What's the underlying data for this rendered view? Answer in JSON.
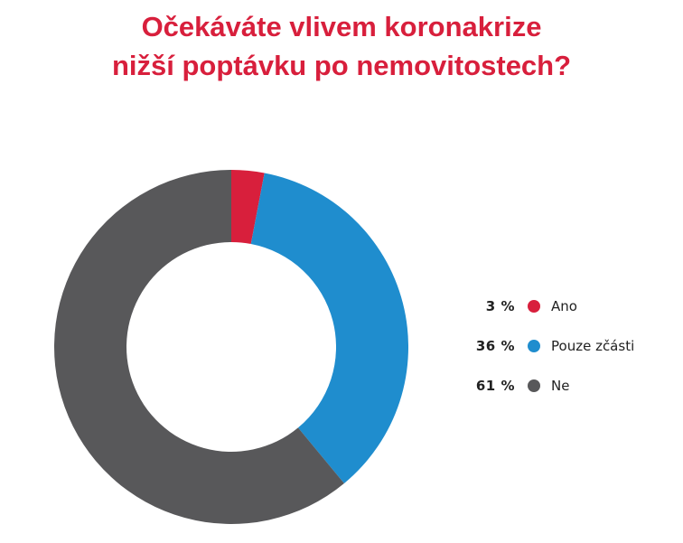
{
  "title": {
    "line1": "Očekáváte vlivem koronakrize",
    "line2": "nižší poptávku po nemovitostech?"
  },
  "colors": {
    "title": "#d81f3c",
    "ano": "#d81f3c",
    "castecne": "#1f8dce",
    "ne": "#58585a"
  },
  "legend": [
    {
      "value": "3 %",
      "label": "Ano"
    },
    {
      "value": "36 %",
      "label": "Pouze zčásti"
    },
    {
      "value": "61 %",
      "label": "Ne"
    }
  ],
  "chart_data": {
    "type": "pie",
    "style": "donut",
    "title": "Očekáváte vlivem koronakrize nižší poptávku po nemovitostech?",
    "categories": [
      "Ano",
      "Pouze zčásti",
      "Ne"
    ],
    "values": [
      3,
      36,
      61
    ],
    "unit": "%",
    "colors": [
      "#d81f3c",
      "#1f8dce",
      "#58585a"
    ],
    "legend_position": "right"
  }
}
